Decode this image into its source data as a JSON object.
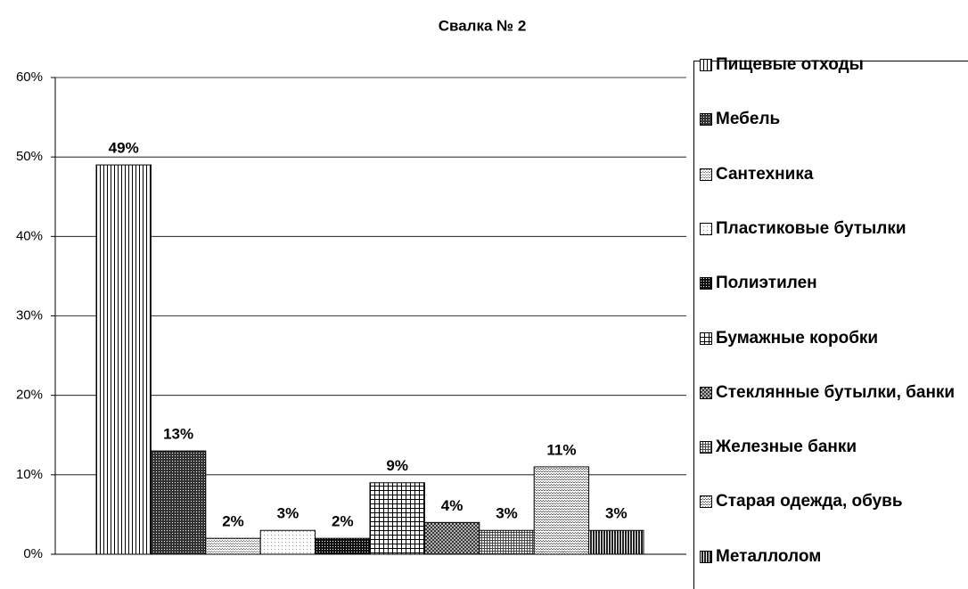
{
  "chart_data": {
    "type": "bar",
    "title": "Свалка № 2",
    "categories": [
      null
    ],
    "series": [
      {
        "name": "Пищевые отходы",
        "color": "#000000",
        "pattern": "vertical",
        "values": [
          49
        ],
        "value_labels": [
          "49%"
        ]
      },
      {
        "name": "Мебель",
        "color": "#333333",
        "pattern": "dense",
        "values": [
          13
        ],
        "value_labels": [
          "13%"
        ]
      },
      {
        "name": "Сантехника",
        "color": "#888888",
        "pattern": "dots",
        "values": [
          2
        ],
        "value_labels": [
          "2%"
        ]
      },
      {
        "name": "Пластиковые бутылки",
        "color": "#999999",
        "pattern": "fine-dots",
        "values": [
          3
        ],
        "value_labels": [
          "3%"
        ]
      },
      {
        "name": "Полиэтилен",
        "color": "#111111",
        "pattern": "dense",
        "values": [
          2
        ],
        "value_labels": [
          "2%"
        ]
      },
      {
        "name": "Бумажные коробки",
        "color": "#000000",
        "pattern": "grid",
        "values": [
          9
        ],
        "value_labels": [
          "9%"
        ]
      },
      {
        "name": "Стеклянные бутылки, банки",
        "color": "#333333",
        "pattern": "cross",
        "values": [
          4
        ],
        "value_labels": [
          "4%"
        ]
      },
      {
        "name": "Железные банки",
        "color": "#444444",
        "pattern": "grid-dense",
        "values": [
          3
        ],
        "value_labels": [
          "3%"
        ]
      },
      {
        "name": "Старая одежда, обувь",
        "color": "#666666",
        "pattern": "dots",
        "values": [
          11
        ],
        "value_labels": [
          "11%"
        ]
      },
      {
        "name": "Металлолом",
        "color": "#222222",
        "pattern": "vertical-dense",
        "values": [
          3
        ],
        "value_labels": [
          "3%"
        ]
      }
    ],
    "ylim": [
      0,
      60
    ],
    "yticks": [
      {
        "value": 0,
        "label": "0%"
      },
      {
        "value": 10,
        "label": "10%"
      },
      {
        "value": 20,
        "label": "20%"
      },
      {
        "value": 30,
        "label": "30%"
      },
      {
        "value": 40,
        "label": "40%"
      },
      {
        "value": 50,
        "label": "50%"
      },
      {
        "value": 60,
        "label": "60%"
      }
    ],
    "grid": true,
    "legend": "right"
  }
}
